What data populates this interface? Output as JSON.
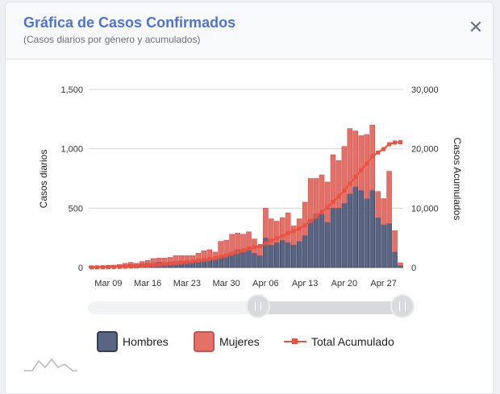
{
  "header": {
    "title": "Gráfica de Casos Confirmados",
    "subtitle": "(Casos diarios por género y acumulados)",
    "close_icon": "close-icon"
  },
  "legend": {
    "hombres": "Hombres",
    "mujeres": "Mujeres",
    "total": "Total Acumulado"
  },
  "colors": {
    "hombres_fill": "#5a6584",
    "hombres_stroke": "#343c58",
    "mujeres_fill": "#e57068",
    "mujeres_stroke": "#c65450",
    "total": "#f0503e"
  },
  "range_slider": {
    "start": 0.48,
    "end": 1.0
  },
  "chart_data": {
    "type": "bar",
    "stacked": true,
    "xlabel_ticks": [
      "Mar 09",
      "Mar 16",
      "Mar 23",
      "Mar 30",
      "Apr 06",
      "Apr 13",
      "Apr 20",
      "Apr 27"
    ],
    "ylabel": "Casos diarios",
    "y2label": "Casos Acumulados",
    "yticks": [
      "0",
      "500",
      "1,000",
      "1,500"
    ],
    "y2ticks": [
      "0",
      "10,000",
      "20,000",
      "30,000"
    ],
    "ylim": [
      0,
      1500
    ],
    "y2lim": [
      0,
      30000
    ],
    "grid": true,
    "categories": [
      "2020-03-06",
      "2020-03-07",
      "2020-03-08",
      "2020-03-09",
      "2020-03-10",
      "2020-03-11",
      "2020-03-12",
      "2020-03-13",
      "2020-03-14",
      "2020-03-15",
      "2020-03-16",
      "2020-03-17",
      "2020-03-18",
      "2020-03-19",
      "2020-03-20",
      "2020-03-21",
      "2020-03-22",
      "2020-03-23",
      "2020-03-24",
      "2020-03-25",
      "2020-03-26",
      "2020-03-27",
      "2020-03-28",
      "2020-03-29",
      "2020-03-30",
      "2020-03-31",
      "2020-04-01",
      "2020-04-02",
      "2020-04-03",
      "2020-04-04",
      "2020-04-05",
      "2020-04-06",
      "2020-04-07",
      "2020-04-08",
      "2020-04-09",
      "2020-04-10",
      "2020-04-11",
      "2020-04-12",
      "2020-04-13",
      "2020-04-14",
      "2020-04-15",
      "2020-04-16",
      "2020-04-17",
      "2020-04-18",
      "2020-04-19",
      "2020-04-20",
      "2020-04-21",
      "2020-04-22",
      "2020-04-23",
      "2020-04-24",
      "2020-04-25",
      "2020-04-26",
      "2020-04-27",
      "2020-04-28",
      "2020-04-29",
      "2020-04-30"
    ],
    "series": [
      {
        "name": "Hombres",
        "values": [
          8,
          5,
          6,
          10,
          12,
          15,
          20,
          25,
          18,
          30,
          35,
          35,
          45,
          40,
          45,
          50,
          55,
          55,
          50,
          70,
          60,
          80,
          70,
          100,
          110,
          130,
          150,
          130,
          160,
          120,
          100,
          250,
          190,
          210,
          230,
          210,
          190,
          220,
          270,
          400,
          450,
          450,
          380,
          500,
          500,
          540,
          620,
          680,
          650,
          580,
          650,
          420,
          360,
          370,
          130,
          15
        ]
      },
      {
        "name": "Mujeres",
        "values": [
          5,
          5,
          6,
          8,
          8,
          10,
          15,
          18,
          17,
          20,
          25,
          40,
          35,
          40,
          40,
          50,
          45,
          45,
          50,
          50,
          80,
          70,
          60,
          120,
          120,
          150,
          140,
          150,
          140,
          120,
          80,
          250,
          220,
          180,
          190,
          250,
          160,
          190,
          280,
          350,
          300,
          330,
          340,
          450,
          400,
          480,
          550,
          470,
          460,
          540,
          550,
          220,
          220,
          440,
          180,
          25
        ]
      },
      {
        "name": "Total Acumulado",
        "values": [
          20,
          30,
          45,
          60,
          80,
          100,
          130,
          170,
          210,
          260,
          320,
          390,
          470,
          550,
          640,
          730,
          840,
          940,
          1040,
          1160,
          1300,
          1450,
          1580,
          1800,
          2030,
          2320,
          2600,
          2880,
          3180,
          3420,
          3600,
          4100,
          4510,
          4900,
          5320,
          5790,
          6140,
          6550,
          7100,
          7850,
          8600,
          9380,
          10100,
          11050,
          11950,
          12970,
          14140,
          15290,
          16400,
          17520,
          18720,
          19370,
          19950,
          20760,
          21050,
          21100
        ]
      }
    ]
  }
}
